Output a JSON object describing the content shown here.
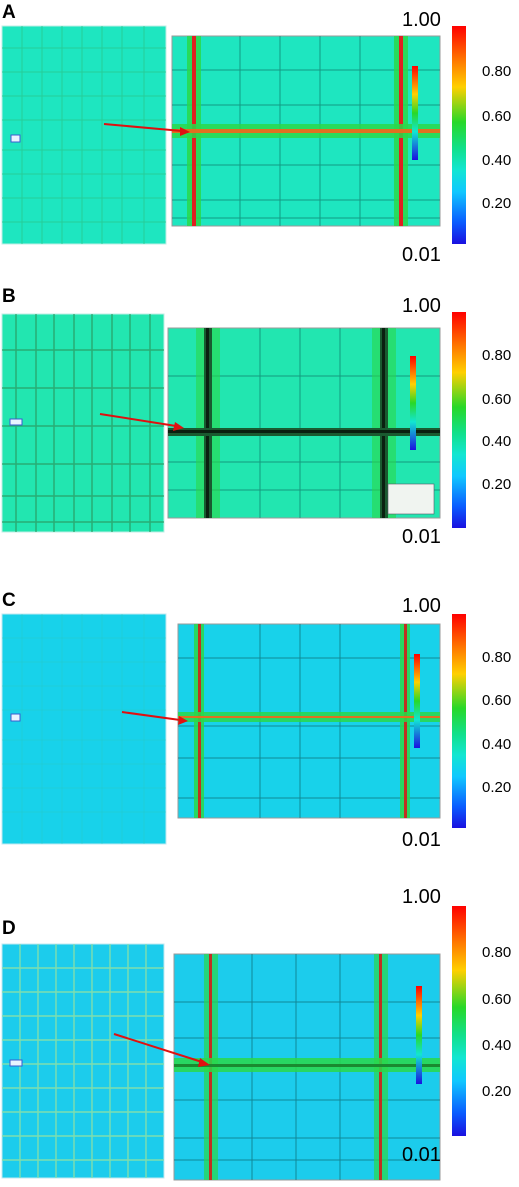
{
  "panels": [
    {
      "label": "A",
      "scale_max": "1.00",
      "scale_min": "0.01",
      "ticks": [
        "0.80",
        "0.60",
        "0.40",
        "0.20"
      ],
      "bg": "#1ee6c0",
      "variant": "a"
    },
    {
      "label": "B",
      "scale_max": "1.00",
      "scale_min": "0.01",
      "ticks": [
        "0.80",
        "0.60",
        "0.40",
        "0.20"
      ],
      "bg": "#22e6b0",
      "variant": "b"
    },
    {
      "label": "C",
      "scale_max": "1.00",
      "scale_min": "0.01",
      "ticks": [
        "0.80",
        "0.60",
        "0.40",
        "0.20"
      ],
      "bg": "#18d2ea",
      "variant": "c"
    },
    {
      "label": "D",
      "scale_max": "1.00",
      "scale_min": "0.01",
      "ticks": [
        "0.80",
        "0.60",
        "0.40",
        "0.20"
      ],
      "bg": "#1cccec",
      "variant": "d"
    }
  ],
  "colors": {
    "arrow": "#e01010",
    "crack_red": "#e02020",
    "crack_green": "#2ad84a",
    "grid_dark": "#0a5a50"
  }
}
